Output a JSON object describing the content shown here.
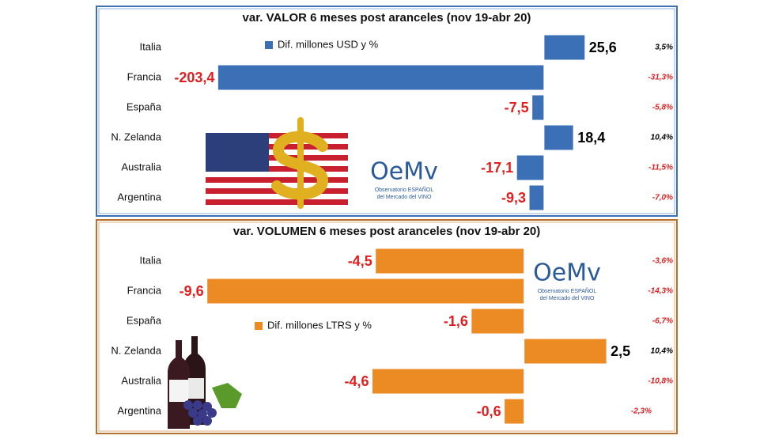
{
  "logo": {
    "mark": "OeMv",
    "line1": "Observatorio ESPAÑOL",
    "line2": "del Mercado del VINO"
  },
  "chart_data": [
    {
      "type": "bar",
      "orientation": "horizontal",
      "title": "var. VALOR 6 meses post aranceles (nov 19-abr 20)",
      "categories": [
        "Italia",
        "Francia",
        "España",
        "N. Zelanda",
        "Australia",
        "Argentina"
      ],
      "series": [
        {
          "name": "Dif. millones USD y %",
          "color": "#3b6fb6",
          "values": [
            25.6,
            -203.4,
            -7.5,
            18.4,
            -17.1,
            -9.3
          ],
          "value_labels": [
            "25,6",
            "-203,4",
            "-7,5",
            "18,4",
            "-17,1",
            "-9,3"
          ]
        }
      ],
      "percent_values": [
        3.5,
        -31.3,
        -5.8,
        10.4,
        -11.5,
        -7.0
      ],
      "percent_labels": [
        "3,5%",
        "-31,3%",
        "-5,8%",
        "10,4%",
        "-11,5%",
        "-7,0%"
      ],
      "xlim": [
        -210,
        40
      ],
      "negative_color": "#e31e1e",
      "positive_color": "#000000"
    },
    {
      "type": "bar",
      "orientation": "horizontal",
      "title": "var. VOLUMEN 6 meses post aranceles (nov 19-abr 20)",
      "categories": [
        "Italia",
        "Francia",
        "España",
        "N. Zelanda",
        "Australia",
        "Argentina"
      ],
      "series": [
        {
          "name": "Dif. millones LTRS y %",
          "color": "#ec8a23",
          "values": [
            -4.5,
            -9.6,
            -1.6,
            2.5,
            -4.6,
            -0.6
          ],
          "value_labels": [
            "-4,5",
            "-9,6",
            "-1,6",
            "2,5",
            "-4,6",
            "-0,6"
          ]
        }
      ],
      "percent_values": [
        -3.6,
        -14.3,
        -6.7,
        10.4,
        -10.8,
        -2.3
      ],
      "percent_labels": [
        "-3,6%",
        "-14,3%",
        "-6,7%",
        "10,4%",
        "-10,8%",
        "-2,3%"
      ],
      "xlim": [
        -10,
        3
      ],
      "negative_color": "#e31e1e",
      "positive_color": "#000000"
    }
  ]
}
